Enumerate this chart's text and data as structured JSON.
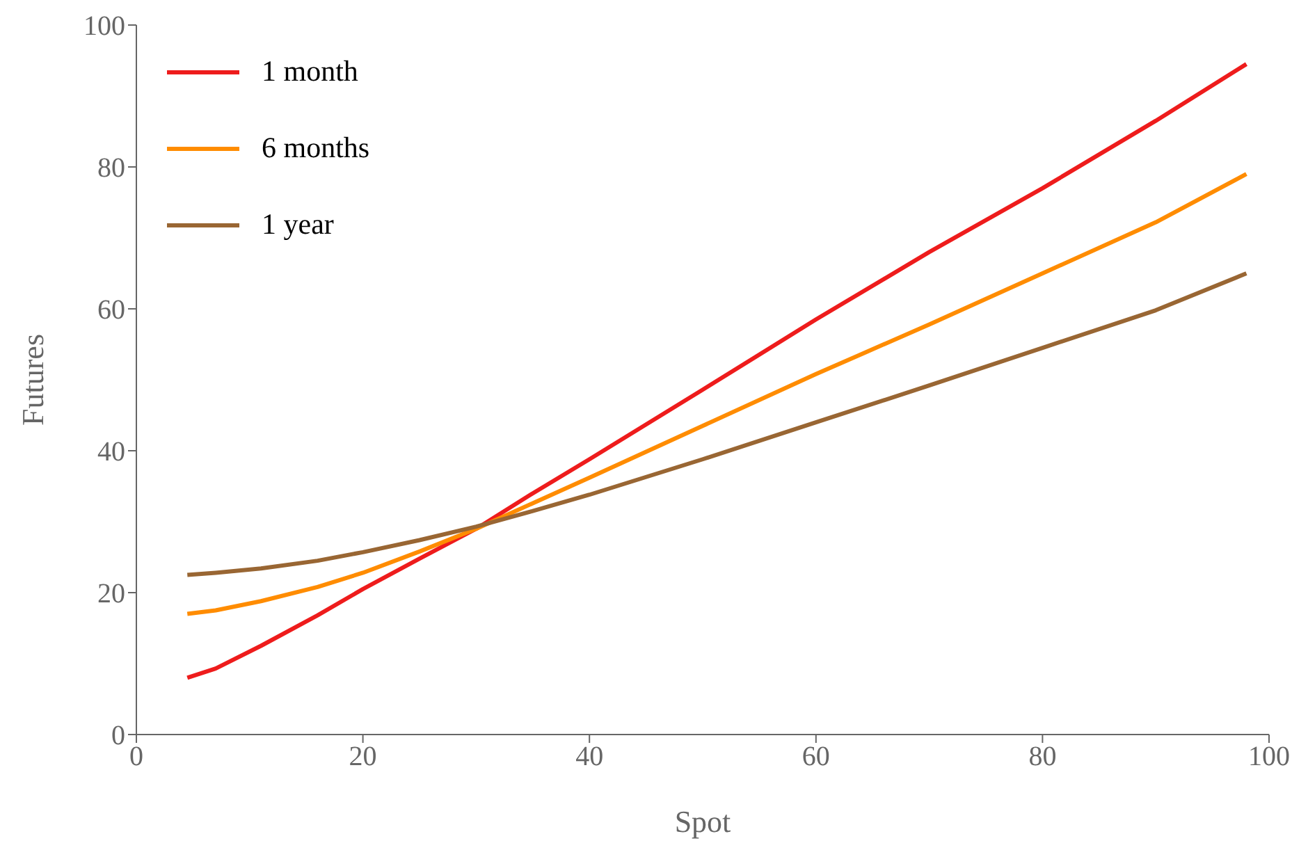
{
  "chart_data": {
    "type": "line",
    "xlabel": "Spot",
    "ylabel": "Futures",
    "x": [
      4.5,
      7,
      11,
      16,
      20,
      25,
      30,
      35,
      40,
      50,
      60,
      70,
      80,
      90,
      98
    ],
    "series": [
      {
        "name": "1 month",
        "color": "#ee1c1c",
        "values": [
          8,
          9.3,
          12.5,
          16.8,
          20.5,
          24.8,
          29,
          34,
          38.8,
          48.6,
          58.5,
          68,
          77,
          86.5,
          94.5
        ]
      },
      {
        "name": "6 months",
        "color": "#ff8c00",
        "values": [
          17,
          17.5,
          18.8,
          20.8,
          22.8,
          25.8,
          29,
          32.6,
          36.2,
          43.5,
          50.8,
          57.8,
          65,
          72.2,
          79
        ]
      },
      {
        "name": "1 year",
        "color": "#996633",
        "values": [
          22.5,
          22.8,
          23.4,
          24.5,
          25.7,
          27.4,
          29.3,
          31.5,
          33.8,
          38.8,
          44,
          49.2,
          54.5,
          59.8,
          65
        ]
      }
    ],
    "xlim": [
      0,
      100
    ],
    "xticks": [
      0,
      20,
      40,
      60,
      80,
      100
    ],
    "ylim": [
      0,
      100
    ],
    "yticks": [
      0,
      20,
      40,
      60,
      80,
      100
    ],
    "grid": false,
    "legend": "top left",
    "marker": "none",
    "line_style": "solid"
  }
}
